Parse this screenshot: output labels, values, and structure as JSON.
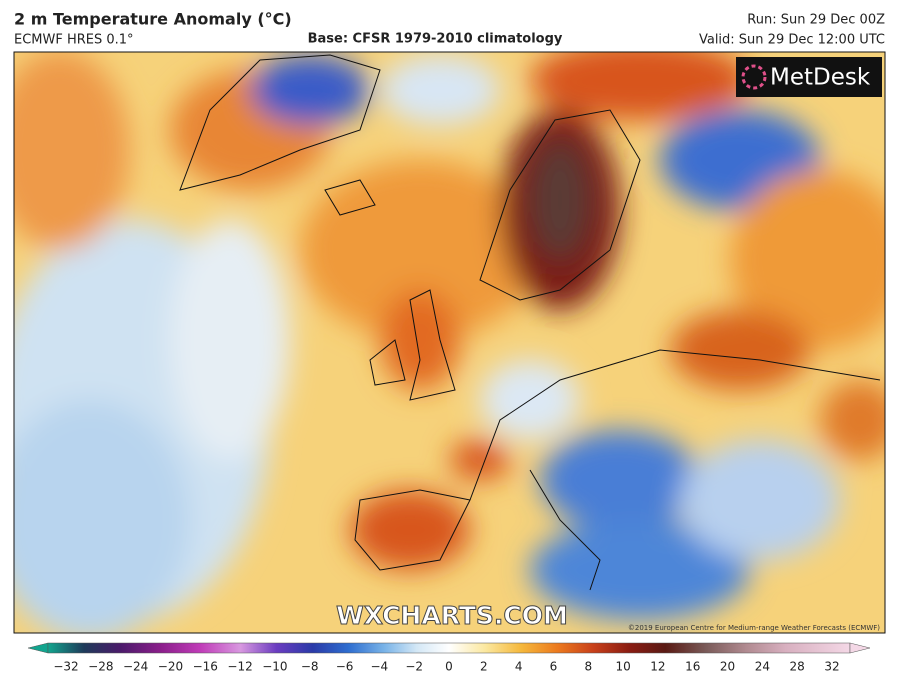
{
  "header": {
    "title": "2 m Temperature Anomaly (°C)",
    "model": "ECMWF HRES 0.1°",
    "base": "Base: CFSR 1979-2010 climatology",
    "run": "Run: Sun 29 Dec 00Z",
    "valid": "Valid: Sun 29 Dec 12:00 UTC"
  },
  "map": {
    "logo": "MetDesk",
    "watermark": "WXCHARTS.COM",
    "credit": "©2019 European Centre for Medium-range Weather Forecasts (ECMWF)"
  },
  "colorbar": {
    "ticks": [
      "−32",
      "−28",
      "−24",
      "−20",
      "−16",
      "−12",
      "−10",
      "−8",
      "−6",
      "−4",
      "−2",
      "0",
      "2",
      "4",
      "6",
      "8",
      "10",
      "12",
      "16",
      "20",
      "24",
      "28",
      "32"
    ]
  }
}
